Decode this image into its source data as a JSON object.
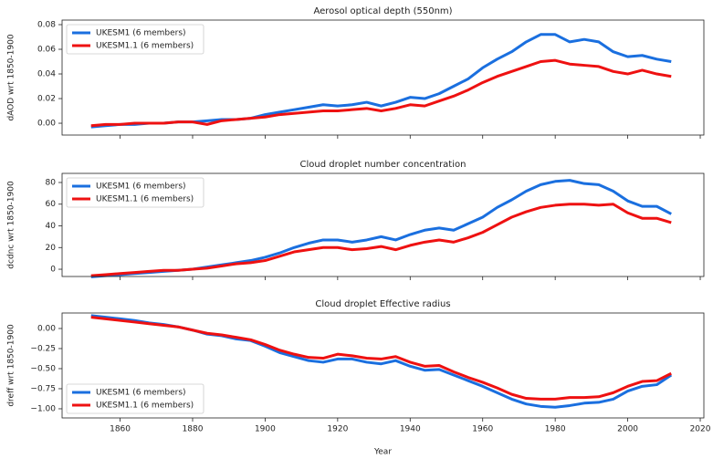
{
  "chart_data": [
    {
      "type": "line",
      "title": "Aerosol optical depth (550nm)",
      "ylabel": "dAOD wrt 1850-1900",
      "x": [
        1852,
        1856,
        1860,
        1864,
        1868,
        1872,
        1876,
        1880,
        1884,
        1888,
        1892,
        1896,
        1900,
        1904,
        1908,
        1912,
        1916,
        1920,
        1924,
        1928,
        1932,
        1936,
        1940,
        1944,
        1948,
        1952,
        1956,
        1960,
        1964,
        1968,
        1972,
        1976,
        1980,
        1984,
        1988,
        1992,
        1996,
        2000,
        2004,
        2008,
        2012
      ],
      "series": [
        {
          "name": "UKESM1 (6 members)",
          "color": "#1a6fdf",
          "values": [
            -0.003,
            -0.002,
            -0.001,
            -0.001,
            0,
            0,
            0.001,
            0.001,
            0.002,
            0.003,
            0.003,
            0.004,
            0.007,
            0.009,
            0.011,
            0.013,
            0.015,
            0.014,
            0.015,
            0.017,
            0.014,
            0.017,
            0.021,
            0.02,
            0.024,
            0.03,
            0.036,
            0.045,
            0.052,
            0.058,
            0.066,
            0.072,
            0.072,
            0.066,
            0.068,
            0.066,
            0.058,
            0.054,
            0.055,
            0.052,
            0.05
          ]
        },
        {
          "name": "UKESM1.1 (6 members)",
          "color": "#ee1111",
          "values": [
            -0.002,
            -0.001,
            -0.001,
            0,
            0,
            0,
            0.001,
            0.001,
            -0.001,
            0.002,
            0.003,
            0.004,
            0.005,
            0.007,
            0.008,
            0.009,
            0.01,
            0.01,
            0.011,
            0.012,
            0.01,
            0.012,
            0.015,
            0.014,
            0.018,
            0.022,
            0.027,
            0.033,
            0.038,
            0.042,
            0.046,
            0.05,
            0.051,
            0.048,
            0.047,
            0.046,
            0.042,
            0.04,
            0.043,
            0.04,
            0.038
          ]
        }
      ],
      "xlim": [
        1844,
        2021
      ],
      "xticks": [
        1860,
        1880,
        1900,
        1920,
        1940,
        1960,
        1980,
        2000,
        2020
      ],
      "ylim": [
        -0.0096,
        0.0837
      ],
      "yticks": [
        {
          "value": 0,
          "label": "0.00"
        },
        {
          "value": 0.02,
          "label": "0.02"
        },
        {
          "value": 0.04,
          "label": "0.04"
        },
        {
          "value": 0.06,
          "label": "0.06"
        },
        {
          "value": 0.08,
          "label": "0.08"
        }
      ],
      "legend": "upper left"
    },
    {
      "type": "line",
      "title": "Cloud droplet number concentration",
      "ylabel": "dcdnc wrt 1850-1900",
      "x": [
        1852,
        1856,
        1860,
        1864,
        1868,
        1872,
        1876,
        1880,
        1884,
        1888,
        1892,
        1896,
        1900,
        1904,
        1908,
        1912,
        1916,
        1920,
        1924,
        1928,
        1932,
        1936,
        1940,
        1944,
        1948,
        1952,
        1956,
        1960,
        1964,
        1968,
        1972,
        1976,
        1980,
        1984,
        1988,
        1992,
        1996,
        2000,
        2004,
        2008,
        2012
      ],
      "series": [
        {
          "name": "UKESM1 (6 members)",
          "color": "#1a6fdf",
          "values": [
            -7,
            -6,
            -5,
            -4,
            -3,
            -2,
            -1,
            0,
            2,
            4,
            6,
            8,
            11,
            15,
            20,
            24,
            27,
            27,
            25,
            27,
            30,
            27,
            32,
            36,
            38,
            36,
            42,
            48,
            57,
            64,
            72,
            78,
            81,
            82,
            79,
            78,
            72,
            63,
            58,
            58,
            51
          ]
        },
        {
          "name": "UKESM1.1 (6 members)",
          "color": "#ee1111",
          "values": [
            -6,
            -5,
            -4,
            -3,
            -2,
            -1,
            -1,
            0,
            1,
            3,
            5,
            6,
            8,
            12,
            16,
            18,
            20,
            20,
            18,
            19,
            21,
            18,
            22,
            25,
            27,
            25,
            29,
            34,
            41,
            48,
            53,
            57,
            59,
            60,
            60,
            59,
            60,
            52,
            47,
            47,
            43
          ]
        }
      ],
      "xlim": [
        1844,
        2021
      ],
      "xticks": [
        1860,
        1880,
        1900,
        1920,
        1940,
        1960,
        1980,
        2000,
        2020
      ],
      "ylim": [
        -6.7,
        88.4
      ],
      "yticks": [
        0,
        20,
        40,
        60,
        80
      ],
      "legend": "upper left"
    },
    {
      "type": "line",
      "title": "Cloud droplet Effective radius",
      "ylabel": "dreff wrt 1850-1900",
      "xlabel": "Year",
      "x": [
        1852,
        1856,
        1860,
        1864,
        1868,
        1872,
        1876,
        1880,
        1884,
        1888,
        1892,
        1896,
        1900,
        1904,
        1908,
        1912,
        1916,
        1920,
        1924,
        1928,
        1932,
        1936,
        1940,
        1944,
        1948,
        1952,
        1956,
        1960,
        1964,
        1968,
        1972,
        1976,
        1980,
        1984,
        1988,
        1992,
        1996,
        2000,
        2004,
        2008,
        2012
      ],
      "series": [
        {
          "name": "UKESM1 (6 members)",
          "color": "#1a6fdf",
          "values": [
            0.16,
            0.14,
            0.12,
            0.1,
            0.07,
            0.05,
            0.02,
            -0.02,
            -0.07,
            -0.09,
            -0.13,
            -0.15,
            -0.22,
            -0.3,
            -0.35,
            -0.4,
            -0.42,
            -0.38,
            -0.38,
            -0.42,
            -0.44,
            -0.4,
            -0.47,
            -0.52,
            -0.51,
            -0.58,
            -0.65,
            -0.72,
            -0.8,
            -0.88,
            -0.94,
            -0.97,
            -0.98,
            -0.96,
            -0.93,
            -0.92,
            -0.88,
            -0.78,
            -0.72,
            -0.7,
            -0.58
          ]
        },
        {
          "name": "UKESM1.1 (6 members)",
          "color": "#ee1111",
          "values": [
            0.14,
            0.12,
            0.1,
            0.08,
            0.06,
            0.04,
            0.02,
            -0.02,
            -0.06,
            -0.08,
            -0.11,
            -0.14,
            -0.2,
            -0.27,
            -0.32,
            -0.36,
            -0.37,
            -0.32,
            -0.34,
            -0.37,
            -0.38,
            -0.35,
            -0.42,
            -0.47,
            -0.46,
            -0.54,
            -0.61,
            -0.67,
            -0.74,
            -0.82,
            -0.87,
            -0.88,
            -0.88,
            -0.86,
            -0.86,
            -0.85,
            -0.8,
            -0.72,
            -0.66,
            -0.65,
            -0.56
          ]
        }
      ],
      "xlim": [
        1844,
        2021
      ],
      "xticks": [
        1860,
        1880,
        1900,
        1920,
        1940,
        1960,
        1980,
        2000,
        2020
      ],
      "ylim": [
        -1.114,
        0.193
      ],
      "yticks": [
        {
          "value": 0,
          "label": "0.00"
        },
        {
          "value": -0.25,
          "label": "−0.25"
        },
        {
          "value": -0.5,
          "label": "−0.50"
        },
        {
          "value": -0.75,
          "label": "−0.75"
        },
        {
          "value": -1,
          "label": "−1.00"
        }
      ],
      "legend": "lower left"
    }
  ]
}
